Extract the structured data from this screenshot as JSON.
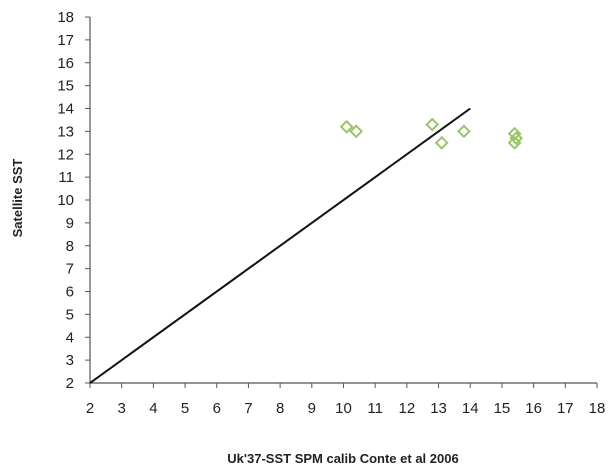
{
  "colors": {
    "marker": "#9cc46a",
    "line": "#111111",
    "axis": "#555555",
    "text": "#222222"
  },
  "chart_data": {
    "type": "scatter",
    "xlabel": "Uk'37-SST  SPM calib Conte et al 2006",
    "ylabel": "Satellite SST",
    "xlim": [
      2,
      18
    ],
    "ylim": [
      2,
      18
    ],
    "xticks": [
      2,
      3,
      4,
      5,
      6,
      7,
      8,
      9,
      10,
      11,
      12,
      13,
      14,
      15,
      16,
      17,
      18
    ],
    "yticks": [
      2,
      3,
      4,
      5,
      6,
      7,
      8,
      9,
      10,
      11,
      12,
      13,
      14,
      15,
      16,
      17,
      18
    ],
    "grid": false,
    "legend": "none",
    "marker": "open-diamond",
    "points": [
      {
        "x": 10.1,
        "y": 13.2
      },
      {
        "x": 10.4,
        "y": 13.0
      },
      {
        "x": 12.8,
        "y": 13.3
      },
      {
        "x": 13.1,
        "y": 12.5
      },
      {
        "x": 13.8,
        "y": 13.0
      },
      {
        "x": 15.4,
        "y": 12.9
      },
      {
        "x": 15.45,
        "y": 12.7
      },
      {
        "x": 15.4,
        "y": 12.5
      }
    ],
    "reference_line": {
      "x": [
        2,
        14
      ],
      "y": [
        2,
        14
      ]
    }
  }
}
